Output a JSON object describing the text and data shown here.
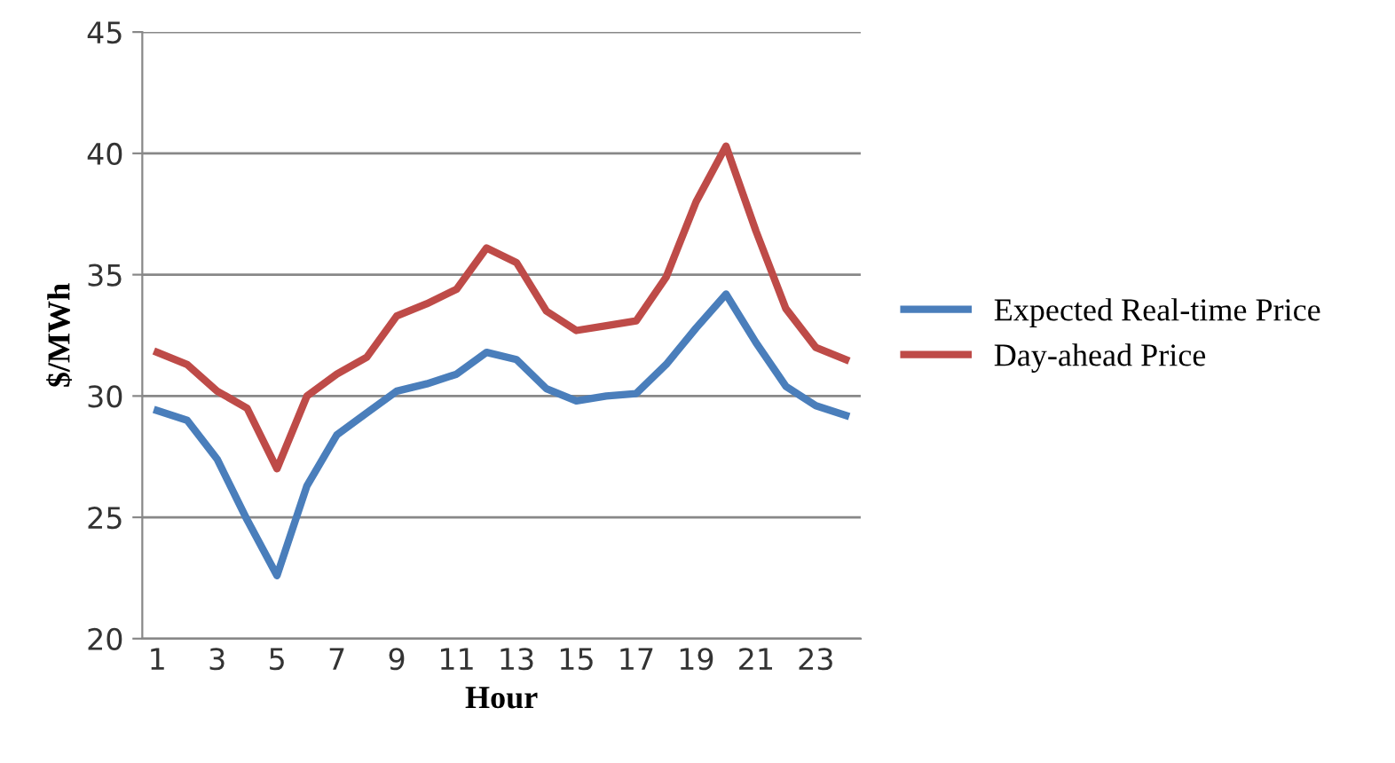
{
  "chart_data": {
    "type": "line",
    "xlabel": "Hour",
    "ylabel": "$/MWh",
    "categories": [
      "1",
      null,
      "3",
      null,
      "5",
      null,
      "7",
      null,
      "9",
      null,
      "11",
      null,
      "13",
      null,
      "15",
      null,
      "17",
      null,
      "19",
      null,
      "21",
      null,
      "23",
      null
    ],
    "series": [
      {
        "name": "Expected Real-time Price",
        "color": "#4a7ebb",
        "values": [
          29.4,
          29.0,
          27.4,
          24.9,
          22.6,
          26.3,
          28.4,
          29.3,
          30.2,
          30.5,
          30.9,
          31.8,
          31.5,
          30.3,
          29.8,
          30.0,
          30.1,
          31.3,
          32.8,
          34.2,
          32.2,
          30.4,
          29.6,
          29.2
        ]
      },
      {
        "name": "Day-ahead Price",
        "color": "#be4b48",
        "values": [
          31.8,
          31.3,
          30.2,
          29.5,
          27.0,
          30.0,
          30.9,
          31.6,
          33.3,
          33.8,
          34.4,
          36.1,
          35.5,
          33.5,
          32.7,
          32.9,
          33.1,
          34.9,
          38.0,
          40.3,
          36.8,
          33.6,
          32.0,
          31.5
        ]
      }
    ],
    "ylim": [
      20,
      45
    ],
    "yticks": [
      20,
      25,
      30,
      35,
      40,
      45
    ],
    "grid": "y",
    "legend": "right",
    "marker": "none",
    "line_style": "solid"
  }
}
